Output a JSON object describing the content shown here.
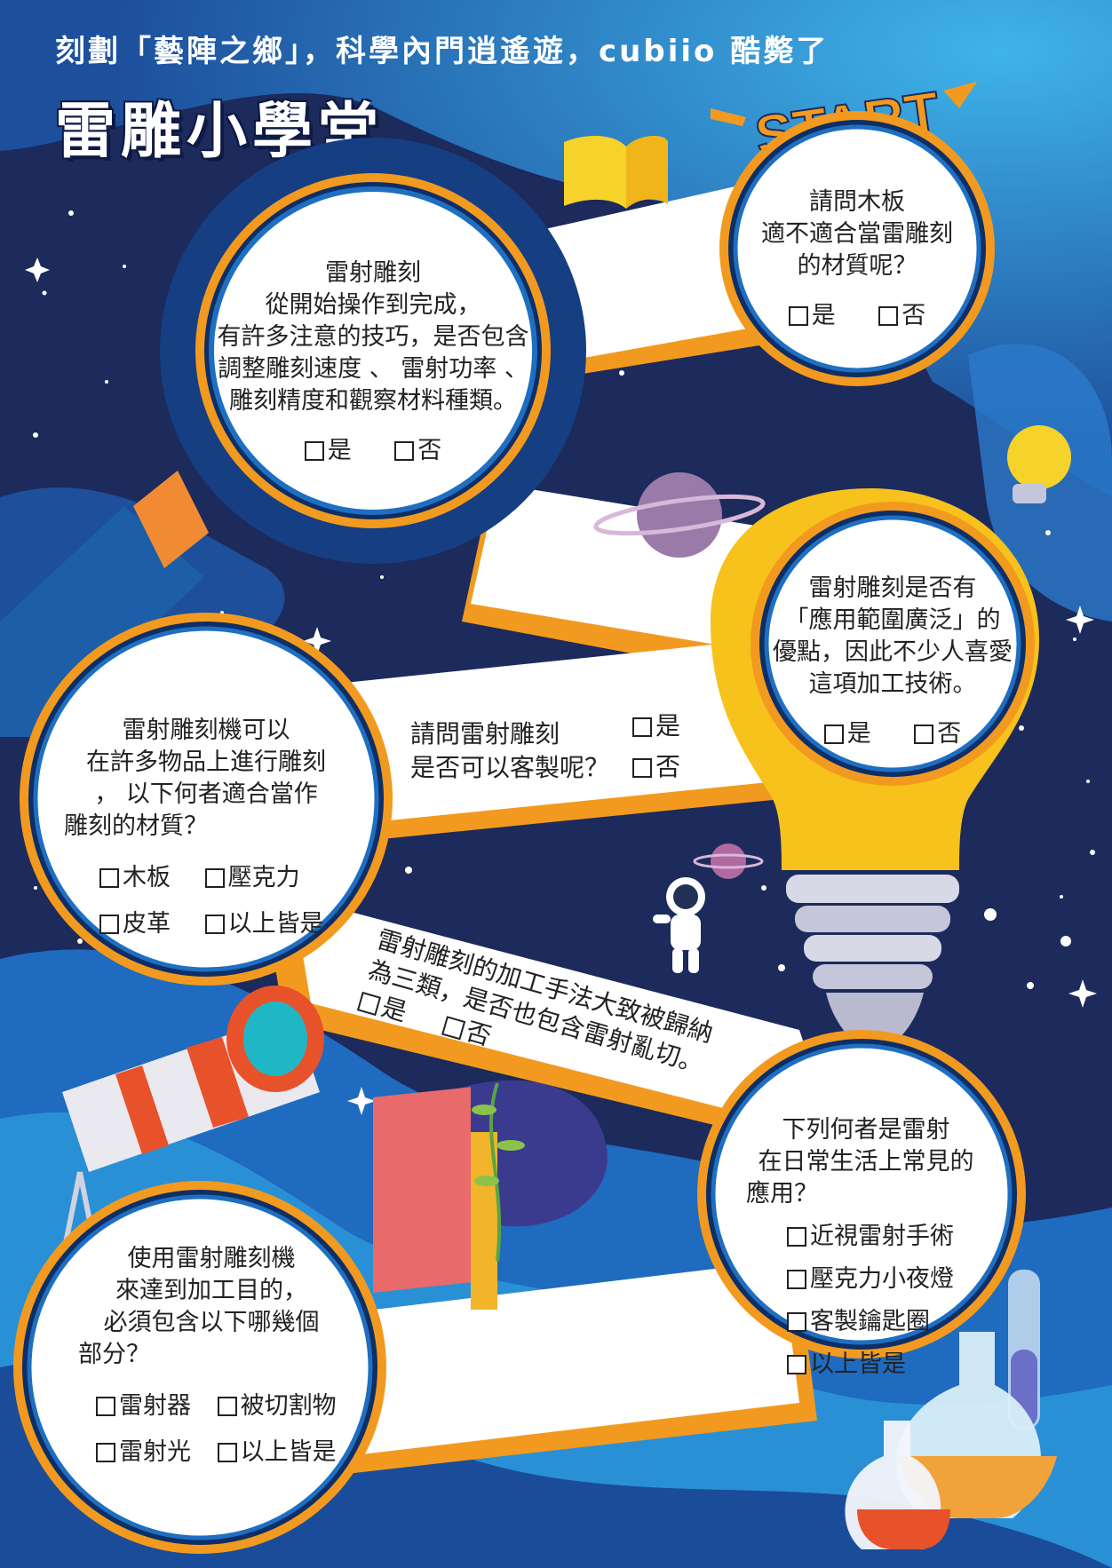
{
  "header": {
    "subtitle": "刻劃「藝陣之鄉」，科學內門逍遙遊，cubiio 酷斃了",
    "title": "雷雕小學堂"
  },
  "start_label": "START",
  "questions": {
    "q1": {
      "lines": [
        "請問木板",
        "適不適合當雷雕刻",
        "的材質呢？"
      ],
      "options": [
        "是",
        "否"
      ]
    },
    "q2": {
      "lines": [
        "雷射雕刻",
        "從開始操作到完成，",
        "有許多注意的技巧，是否包含",
        "調整雕刻速度 、 雷射功率 、",
        "雕刻精度和觀察材料種類。"
      ],
      "options": [
        "是",
        "否"
      ]
    },
    "q3": {
      "lines": [
        "雷射雕刻是否有",
        "「應用範圍廣泛」的",
        "優點，因此不少人喜愛",
        "這項加工技術。"
      ],
      "options": [
        "是",
        "否"
      ]
    },
    "q4": {
      "lines": [
        "請問雷射雕刻",
        "是否可以客製呢？"
      ],
      "options": [
        "是",
        "否"
      ]
    },
    "q5": {
      "lines": [
        "雷射雕刻機可以",
        "在許多物品上進行雕刻",
        "， 以下何者適合當作",
        "雕刻的材質？"
      ],
      "options": [
        "木板",
        "壓克力",
        "皮革",
        "以上皆是"
      ]
    },
    "q6": {
      "lines": [
        "雷射雕刻的加工手法大致被歸納",
        "為三類，是否也包含雷射亂切。"
      ],
      "options": [
        "是",
        "否"
      ]
    },
    "q7": {
      "lines": [
        "下列何者是雷射",
        "在日常生活上常見的",
        "應用？"
      ],
      "options": [
        "近視雷射手術",
        "壓克力小夜燈",
        "客製鑰匙圈",
        "以上皆是"
      ]
    },
    "q8": {
      "lines": [
        "使用雷射雕刻機",
        "來達到加工目的，",
        "必須包含以下哪幾個",
        "部分？"
      ],
      "options": [
        "雷射器",
        "被切割物",
        "雷射光",
        "以上皆是"
      ]
    }
  },
  "colors": {
    "navy": "#1c2a5c",
    "deep_blue": "#0e3a7a",
    "sky": "#2e9ad8",
    "orange": "#f29a1f",
    "yellow": "#f6c21b",
    "white": "#ffffff"
  },
  "icons": [
    "book-icon",
    "planet-icon",
    "lightbulb-icon",
    "astronaut-icon",
    "telescope-icon",
    "open-book-plant-icon",
    "flask-icon",
    "magnifier-icon"
  ]
}
